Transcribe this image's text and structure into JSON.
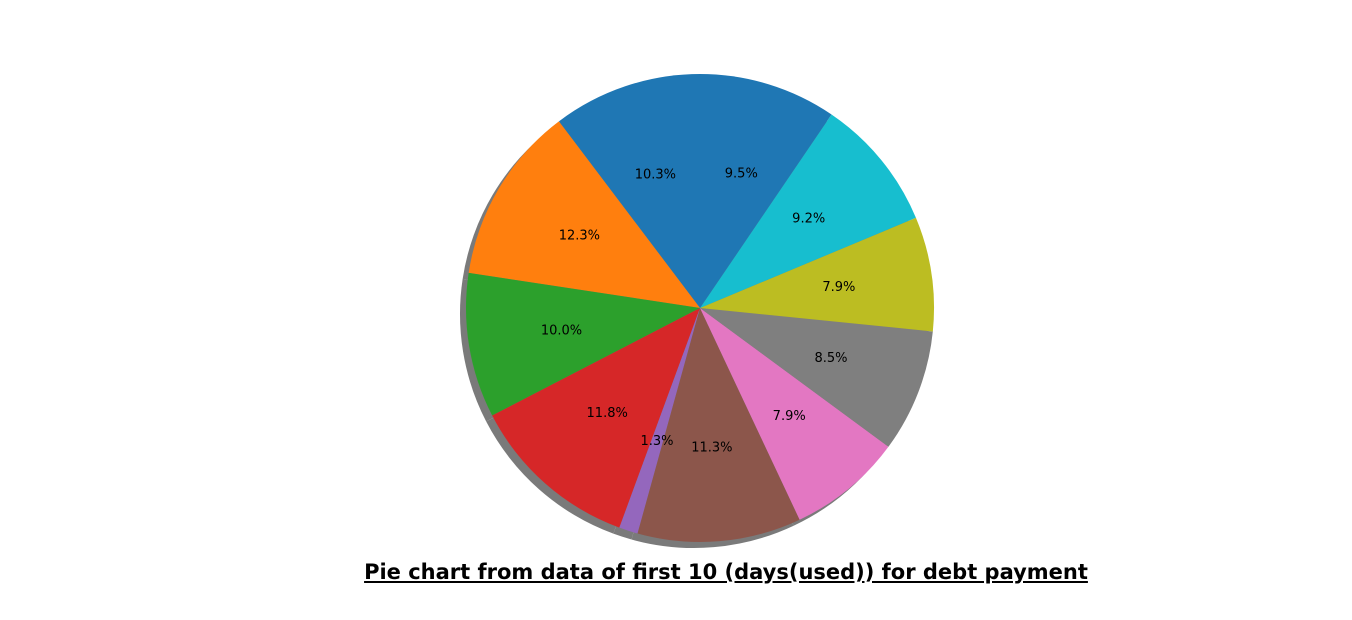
{
  "chart_data": {
    "type": "pie",
    "title": "Pie chart from data of first 10 (days(used)) for debt payment",
    "slices": [
      {
        "value": 10.3,
        "label": "10.3%",
        "color": "#1f77b4"
      },
      {
        "value": 12.3,
        "label": "12.3%",
        "color": "#ff7f0e"
      },
      {
        "value": 10.0,
        "label": "10.0%",
        "color": "#2ca02c"
      },
      {
        "value": 11.8,
        "label": "11.8%",
        "color": "#d62728"
      },
      {
        "value": 1.3,
        "label": "1.3%",
        "color": "#9467bd"
      },
      {
        "value": 11.3,
        "label": "11.3%",
        "color": "#8c564b"
      },
      {
        "value": 7.9,
        "label": "7.9%",
        "color": "#e377c2"
      },
      {
        "value": 8.5,
        "label": "8.5%",
        "color": "#7f7f7f"
      },
      {
        "value": 7.9,
        "label": "7.9%",
        "color": "#bcbd22"
      },
      {
        "value": 9.2,
        "label": "9.2%",
        "color": "#17becf"
      },
      {
        "value": 9.5,
        "label": "9.5%",
        "color": "#1f77b4"
      }
    ],
    "start_angle": 90,
    "direction": "counterclockwise",
    "shadow": true,
    "shadow_color": "#7a7a7a"
  }
}
